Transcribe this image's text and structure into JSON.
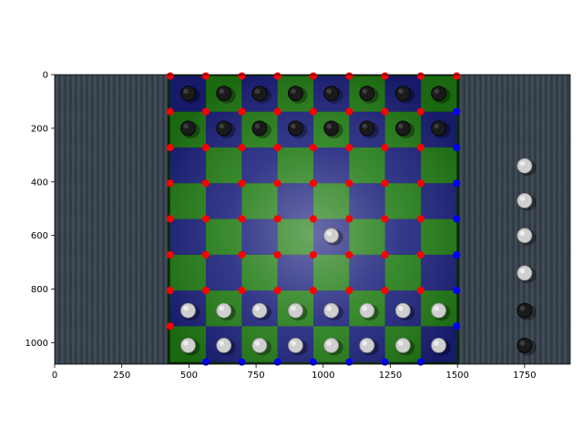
{
  "figure": {
    "background": "#ffffff"
  },
  "image_content": {
    "description_colors": {
      "wood_table": "#3b4550",
      "board_green": "#1f7a12",
      "board_blue": "#1a1f7a",
      "board_border": "#0a2a0a",
      "white_piece": "#cfcfcf",
      "black_piece": "#1a1a1a"
    }
  },
  "chart_data": {
    "type": "scatter",
    "title": "",
    "xlabel": "",
    "ylabel": "",
    "xlim": [
      0,
      1920
    ],
    "ylim": [
      1080,
      0
    ],
    "x_ticks": [
      0,
      250,
      500,
      750,
      1000,
      1250,
      1500,
      1750
    ],
    "y_ticks": [
      0,
      200,
      400,
      600,
      800,
      1000
    ],
    "x_tick_labels": [
      "0",
      "250",
      "500",
      "750",
      "1000",
      "1250",
      "1500",
      "1750"
    ],
    "y_tick_labels": [
      "0",
      "200",
      "400",
      "600",
      "800",
      "1000"
    ],
    "grid": false,
    "legend": "none",
    "image_background": true,
    "series": [
      {
        "color": "#ff0000",
        "x": [
          430,
          430,
          430,
          430,
          430,
          430,
          430,
          430,
          563,
          563,
          563,
          563,
          563,
          563,
          563,
          697,
          697,
          697,
          697,
          697,
          697,
          697,
          830,
          830,
          830,
          830,
          830,
          830,
          830,
          963,
          963,
          963,
          963,
          963,
          963,
          963,
          1097,
          1097,
          1097,
          1097,
          1097,
          1097,
          1097,
          1230,
          1230,
          1230,
          1230,
          1230,
          1230,
          1230,
          1363,
          1363,
          1363,
          1363,
          1363,
          1363,
          1363,
          1497,
          1497
        ],
        "y": [
          5,
          138,
          272,
          405,
          538,
          672,
          805,
          938,
          5,
          138,
          272,
          405,
          538,
          672,
          805,
          5,
          138,
          272,
          405,
          538,
          672,
          805,
          5,
          138,
          272,
          405,
          538,
          672,
          805,
          5,
          138,
          272,
          405,
          538,
          672,
          805,
          5,
          138,
          272,
          405,
          538,
          672,
          805,
          5,
          138,
          272,
          405,
          538,
          672,
          805,
          5,
          138,
          272,
          405,
          538,
          672,
          805,
          5,
          138
        ]
      },
      {
        "color": "#0000ff",
        "x": [
          1497,
          1497,
          1497,
          1497,
          1497,
          1497,
          1497,
          563,
          697,
          830,
          963,
          1097,
          1230,
          1363
        ],
        "y": [
          138,
          272,
          405,
          538,
          672,
          805,
          938,
          1072,
          1072,
          1072,
          1072,
          1072,
          1072,
          1072
        ]
      }
    ]
  }
}
